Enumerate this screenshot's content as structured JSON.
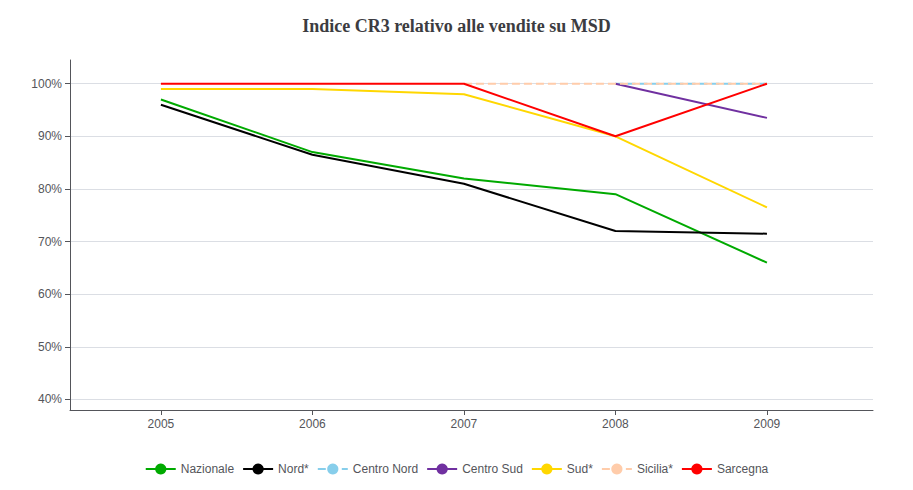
{
  "chart_data": {
    "type": "line",
    "title": "Indice CR3 relativo alle vendite su MSD",
    "x": [
      2005,
      2006,
      2007,
      2008,
      2009
    ],
    "xlim": [
      2004.4,
      2009.7
    ],
    "xticks": [
      2005,
      2006,
      2007,
      2008,
      2009
    ],
    "ylim": [
      0.38,
      1.045
    ],
    "yticks": [
      {
        "value": 0.4,
        "label": "40%"
      },
      {
        "value": 0.5,
        "label": "50%"
      },
      {
        "value": 0.6,
        "label": "60%"
      },
      {
        "value": 0.7,
        "label": "70%"
      },
      {
        "value": 0.8,
        "label": "80%"
      },
      {
        "value": 0.9,
        "label": "90%"
      },
      {
        "value": 1.0,
        "label": "100%"
      }
    ],
    "grid": true,
    "legend": "bottom",
    "series": [
      {
        "name": "Nazionale",
        "color": "#00AA00",
        "line_style": "solid",
        "values": [
          0.97,
          0.87,
          0.82,
          0.79,
          0.66
        ]
      },
      {
        "name": "Nord*",
        "color": "#000000",
        "line_style": "solid",
        "values": [
          0.96,
          0.865,
          0.81,
          0.72,
          0.715
        ]
      },
      {
        "name": "Centro Nord",
        "color": "#87CEEB",
        "line_style": "dashed",
        "values": [
          null,
          null,
          null,
          1.0,
          1.0
        ]
      },
      {
        "name": "Centro Sud",
        "color": "#7030A0",
        "line_style": "solid",
        "values": [
          null,
          null,
          null,
          1.0,
          0.935
        ]
      },
      {
        "name": "Sud*",
        "color": "#FFD700",
        "line_style": "solid",
        "values": [
          0.99,
          0.99,
          0.98,
          0.9,
          0.765
        ]
      },
      {
        "name": "Sicilia*",
        "color": "#FFCCAA",
        "line_style": "dashed",
        "values": [
          null,
          null,
          1.0,
          1.0,
          1.0
        ]
      },
      {
        "name": "Sarcegna",
        "color": "#FF0000",
        "line_style": "solid",
        "values": [
          1.0,
          1.0,
          1.0,
          0.9,
          1.0
        ]
      }
    ]
  }
}
